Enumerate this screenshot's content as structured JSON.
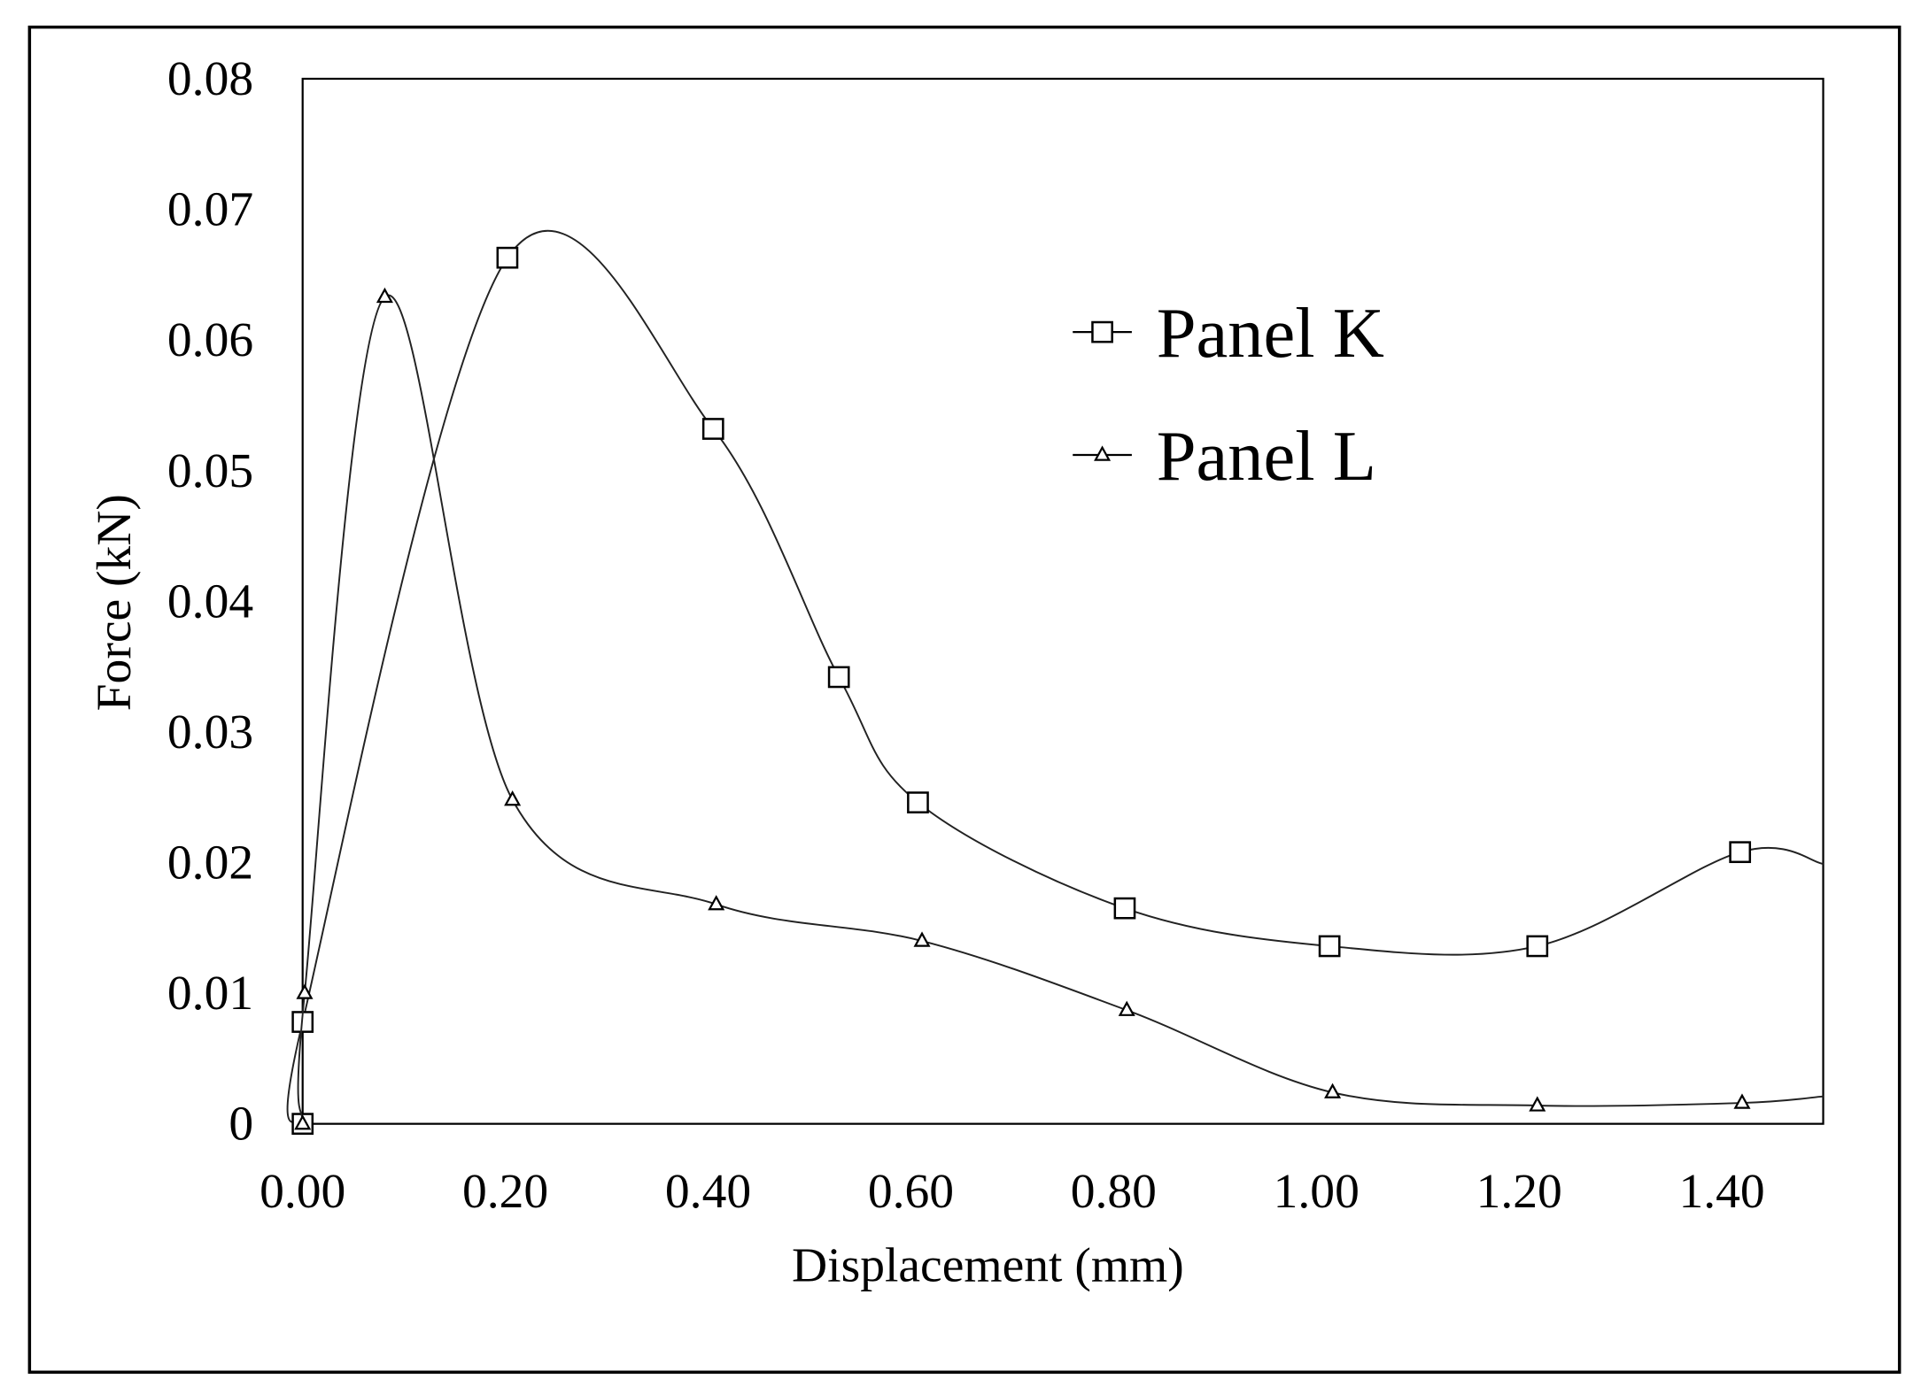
{
  "chart_data": {
    "type": "line",
    "title": "",
    "xlabel": "Displacement (mm)",
    "ylabel": "Force (kN)",
    "xlim": [
      0,
      1.5
    ],
    "ylim": [
      0,
      0.08
    ],
    "grid": false,
    "legend_position": "top-right",
    "xticks": [
      "0.00",
      "0.20",
      "0.40",
      "0.60",
      "0.80",
      "1.00",
      "1.20",
      "1.40"
    ],
    "xtick_values": [
      0,
      0.2,
      0.4,
      0.6,
      0.8,
      1.0,
      1.2,
      1.4
    ],
    "yticks": [
      "0",
      "0.01",
      "0.02",
      "0.03",
      "0.04",
      "0.05",
      "0.06",
      "0.07",
      "0.08"
    ],
    "ytick_values": [
      0,
      0.01,
      0.02,
      0.03,
      0.04,
      0.05,
      0.06,
      0.07,
      0.08
    ],
    "series": [
      {
        "name": "Panel K",
        "marker": "square",
        "x": [
          0.0,
          0.0,
          0.202,
          0.405,
          0.529,
          0.607,
          0.811,
          1.013,
          1.218,
          1.418
        ],
        "y": [
          0.0,
          0.0078,
          0.0663,
          0.0532,
          0.0342,
          0.0246,
          0.0165,
          0.0136,
          0.0136,
          0.0208
        ],
        "line_end": [
          1.5,
          0.0199
        ]
      },
      {
        "name": "Panel L",
        "marker": "triangle",
        "x": [
          0.0,
          0.002,
          0.081,
          0.207,
          0.408,
          0.611,
          0.813,
          1.016,
          1.218,
          1.42
        ],
        "y": [
          0.0,
          0.01,
          0.0633,
          0.0248,
          0.0168,
          0.014,
          0.0087,
          0.0024,
          0.0014,
          0.0016
        ],
        "line_end": [
          1.5,
          0.0021
        ]
      }
    ]
  }
}
